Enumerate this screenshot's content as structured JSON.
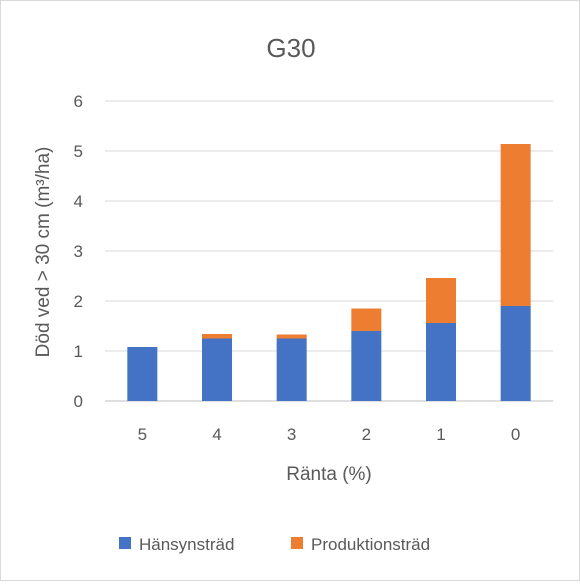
{
  "chart_data": {
    "type": "bar",
    "stacked": true,
    "title": "G30",
    "xlabel": "Ränta (%)",
    "ylabel": "Död ved > 30 cm (m³/ha)",
    "categories": [
      "5",
      "4",
      "3",
      "2",
      "1",
      "0"
    ],
    "series": [
      {
        "name": "Hänsynsträd",
        "color": "#4472c4",
        "values": [
          1.08,
          1.25,
          1.25,
          1.4,
          1.56,
          1.9
        ]
      },
      {
        "name": "Produktionsträd",
        "color": "#ed7d31",
        "values": [
          0.0,
          0.09,
          0.08,
          0.45,
          0.9,
          3.24
        ]
      }
    ],
    "ylim": [
      0,
      6
    ],
    "yticks": [
      "0",
      "1",
      "2",
      "3",
      "4",
      "5",
      "6"
    ],
    "grid": true,
    "legend": "bottom"
  }
}
